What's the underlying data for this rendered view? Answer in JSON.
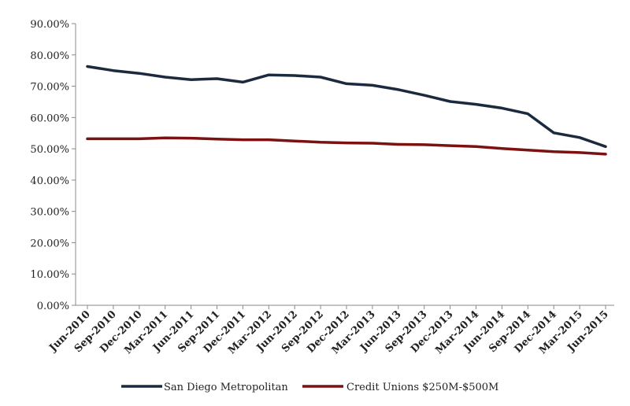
{
  "chart_data": {
    "type": "line",
    "title": "",
    "xlabel": "",
    "ylabel": "",
    "ylim": [
      0,
      90
    ],
    "y_ticks": [
      "0.00%",
      "10.00%",
      "20.00%",
      "30.00%",
      "40.00%",
      "50.00%",
      "60.00%",
      "70.00%",
      "80.00%",
      "90.00%"
    ],
    "grid": false,
    "legend_position": "bottom",
    "categories": [
      "Jun-2010",
      "Sep-2010",
      "Dec-2010",
      "Mar-2011",
      "Jun-2011",
      "Sep-2011",
      "Dec-2011",
      "Mar-2012",
      "Jun-2012",
      "Sep-2012",
      "Dec-2012",
      "Mar-2013",
      "Jun-2013",
      "Sep-2013",
      "Dec-2013",
      "Mar-2014",
      "Jun-2014",
      "Sep-2014",
      "Dec-2014",
      "Mar-2015",
      "Jun-2015"
    ],
    "series": [
      {
        "name": "San Diego Metropolitan",
        "color": "#1b2a3e",
        "values": [
          76.3,
          75.0,
          74.1,
          72.9,
          72.1,
          72.4,
          71.3,
          73.6,
          73.4,
          72.9,
          70.8,
          70.3,
          68.9,
          67.1,
          65.1,
          64.2,
          63.0,
          61.2,
          55.1,
          53.6,
          50.7
        ]
      },
      {
        "name": "Credit Unions $250M-$500M",
        "color": "#7b1210",
        "values": [
          53.2,
          53.2,
          53.2,
          53.5,
          53.4,
          53.1,
          52.9,
          52.9,
          52.5,
          52.1,
          51.9,
          51.8,
          51.4,
          51.3,
          51.0,
          50.7,
          50.1,
          49.6,
          49.1,
          48.8,
          48.3
        ]
      }
    ]
  }
}
